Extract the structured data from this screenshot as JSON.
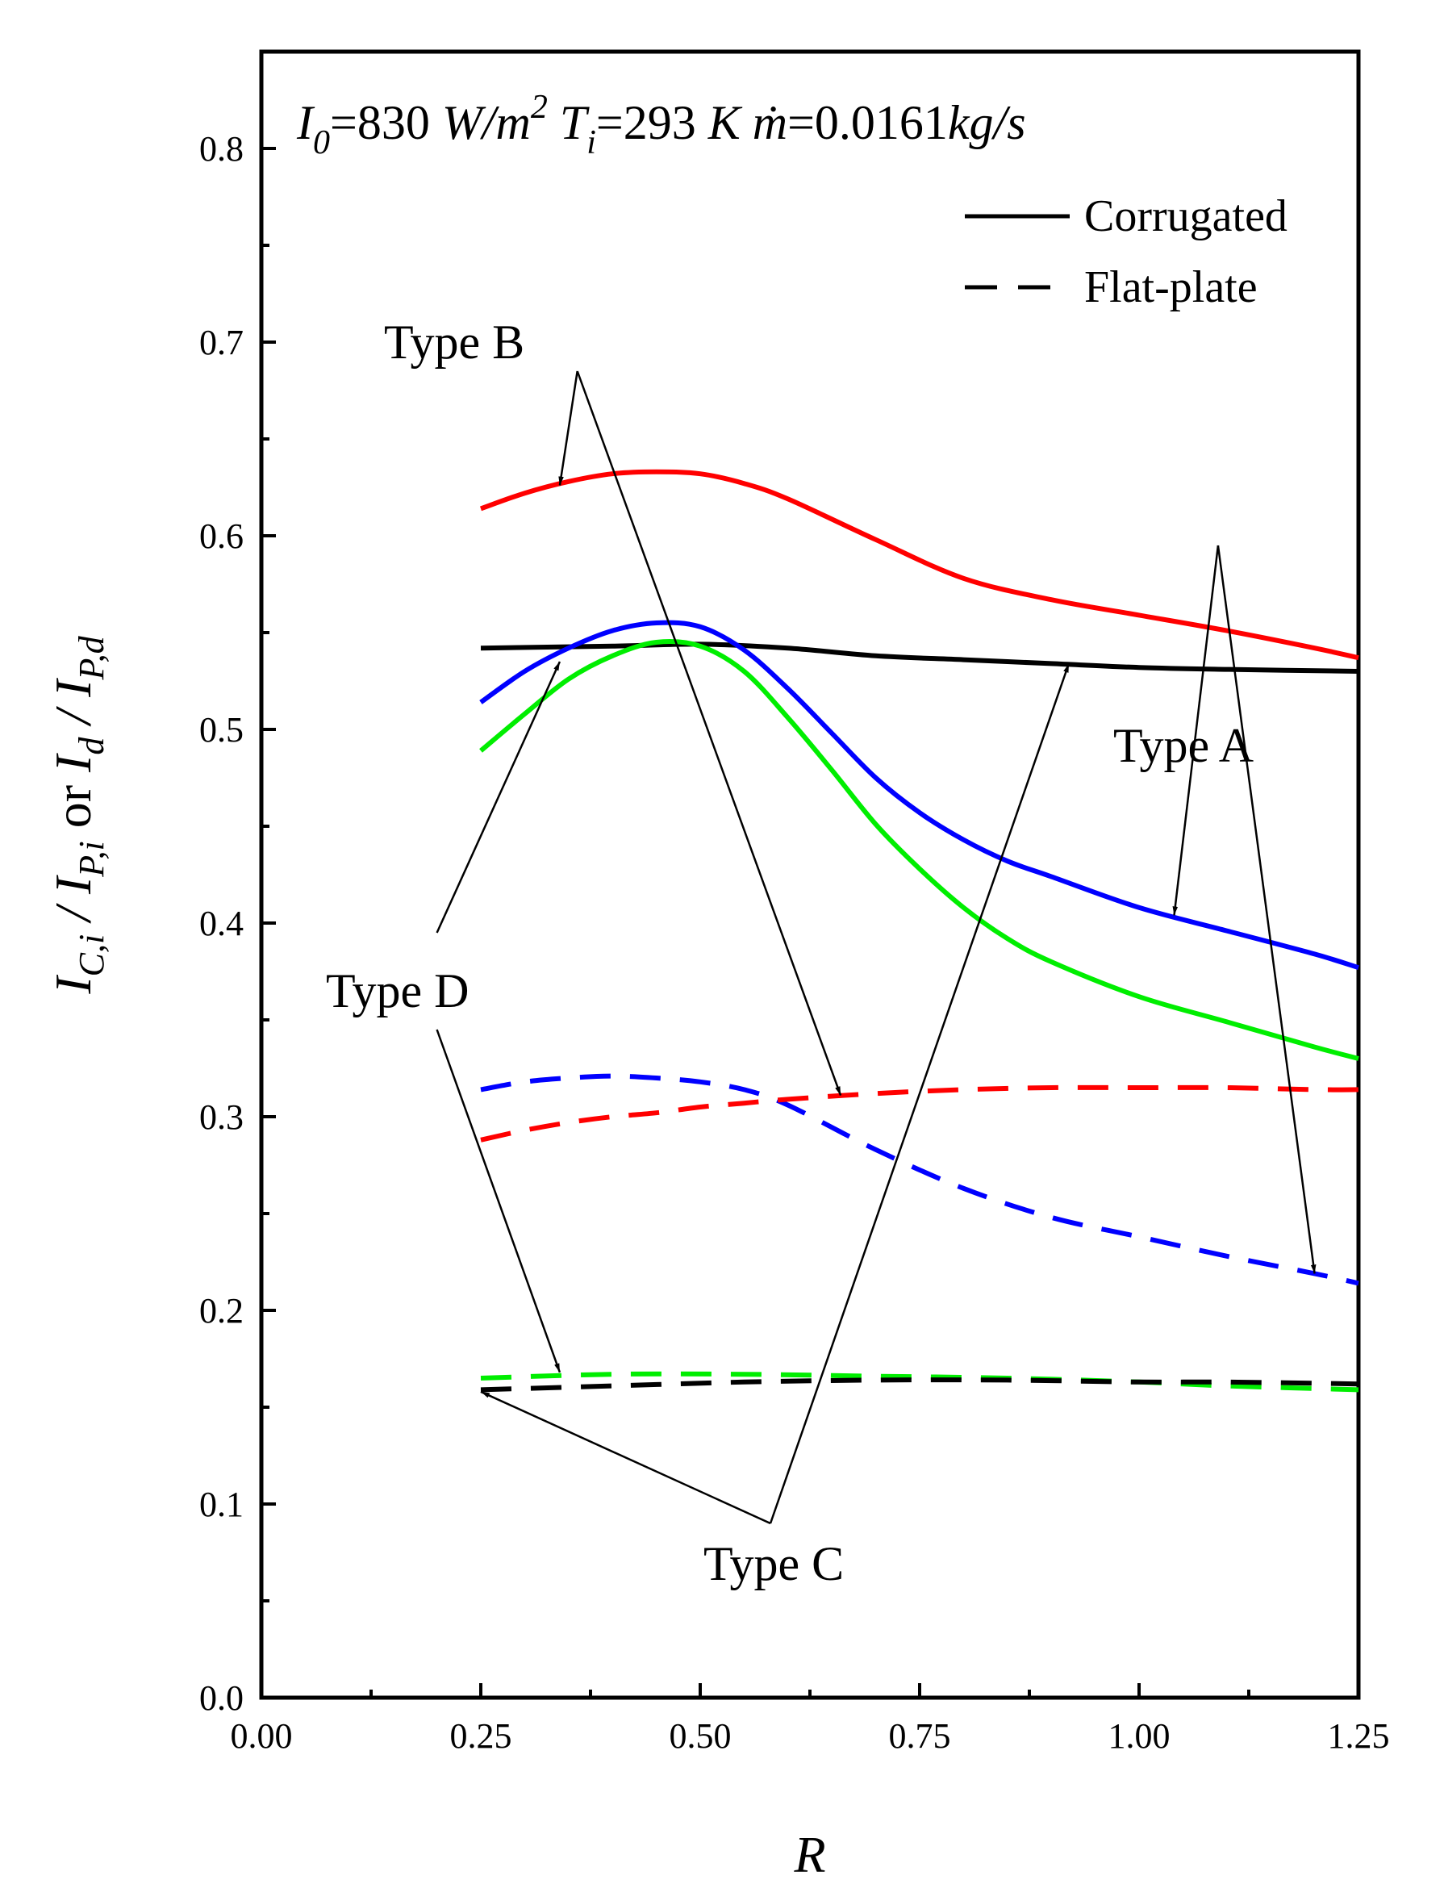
{
  "chart_data": {
    "type": "line",
    "title": "",
    "conditions": {
      "i0_sym": "I",
      "i0_sub": "0",
      "i0_eq": "=830 ",
      "i0_unit": "W/m",
      "i0_sup": "2",
      "ti_sym": "T",
      "ti_sub": "i",
      "ti_eq": "=293 ",
      "ti_unit": "K",
      "m_sym": "ṁ",
      "m_eq": "=0.0161",
      "m_unit": "kg/s"
    },
    "xlabel": "R",
    "ylabel": {
      "a_sym": "I",
      "a_sub": "C,i",
      "sep1": " / ",
      "b_sym": "I",
      "b_sub": "P,i",
      "or": "  or  ",
      "c_sym": "I",
      "c_sub": "d",
      "sep2": " / ",
      "d_sym": "I",
      "d_sub": "P,d"
    },
    "xlim": [
      0.0,
      1.25
    ],
    "ylim": [
      0.0,
      0.85
    ],
    "xticks": [
      "0.00",
      "0.25",
      "0.50",
      "0.75",
      "1.00",
      "1.25"
    ],
    "yticks": [
      "0.0",
      "0.1",
      "0.2",
      "0.3",
      "0.4",
      "0.5",
      "0.6",
      "0.7",
      "0.8"
    ],
    "legend": {
      "position": "top-right",
      "entries": [
        {
          "label": "Corrugated",
          "style": "solid"
        },
        {
          "label": "Flat-plate",
          "style": "dashed"
        }
      ]
    },
    "series": [
      {
        "name": "Type B Corrugated",
        "color": "#ff0000",
        "style": "solid",
        "x": [
          0.25,
          0.3,
          0.35,
          0.4,
          0.45,
          0.5,
          0.55,
          0.6,
          0.7,
          0.8,
          0.9,
          1.0,
          1.1,
          1.2,
          1.25
        ],
        "y": [
          0.614,
          0.622,
          0.628,
          0.632,
          0.633,
          0.632,
          0.627,
          0.619,
          0.598,
          0.578,
          0.567,
          0.559,
          0.551,
          0.542,
          0.537
        ]
      },
      {
        "name": "Type C Corrugated",
        "color": "#000000",
        "style": "solid",
        "x": [
          0.25,
          0.4,
          0.5,
          0.6,
          0.7,
          0.8,
          0.9,
          1.0,
          1.1,
          1.25
        ],
        "y": [
          0.542,
          0.543,
          0.544,
          0.542,
          0.538,
          0.536,
          0.534,
          0.532,
          0.531,
          0.53
        ]
      },
      {
        "name": "Type A Corrugated",
        "color": "#0000ff",
        "style": "solid",
        "x": [
          0.25,
          0.3,
          0.35,
          0.4,
          0.45,
          0.5,
          0.55,
          0.6,
          0.65,
          0.7,
          0.75,
          0.8,
          0.85,
          0.9,
          1.0,
          1.1,
          1.2,
          1.25
        ],
        "y": [
          0.514,
          0.53,
          0.542,
          0.551,
          0.555,
          0.553,
          0.541,
          0.521,
          0.498,
          0.475,
          0.457,
          0.443,
          0.432,
          0.424,
          0.408,
          0.396,
          0.384,
          0.377
        ]
      },
      {
        "name": "Type D Corrugated",
        "color": "#00ee00",
        "style": "solid",
        "x": [
          0.25,
          0.3,
          0.35,
          0.4,
          0.45,
          0.5,
          0.55,
          0.6,
          0.65,
          0.7,
          0.75,
          0.8,
          0.85,
          0.9,
          1.0,
          1.1,
          1.2,
          1.25
        ],
        "y": [
          0.489,
          0.508,
          0.526,
          0.538,
          0.545,
          0.543,
          0.53,
          0.506,
          0.479,
          0.451,
          0.428,
          0.408,
          0.392,
          0.38,
          0.362,
          0.349,
          0.336,
          0.33
        ]
      },
      {
        "name": "Type A Flat-plate",
        "color": "#0000ff",
        "style": "dashed",
        "x": [
          0.25,
          0.3,
          0.35,
          0.4,
          0.45,
          0.5,
          0.55,
          0.6,
          0.7,
          0.8,
          0.9,
          1.0,
          1.1,
          1.2,
          1.25
        ],
        "y": [
          0.314,
          0.318,
          0.32,
          0.321,
          0.32,
          0.318,
          0.314,
          0.306,
          0.283,
          0.263,
          0.248,
          0.238,
          0.228,
          0.219,
          0.214
        ]
      },
      {
        "name": "Type B Flat-plate",
        "color": "#ff0000",
        "style": "dashed",
        "x": [
          0.25,
          0.3,
          0.35,
          0.4,
          0.45,
          0.5,
          0.55,
          0.6,
          0.7,
          0.8,
          0.9,
          1.0,
          1.1,
          1.2,
          1.25
        ],
        "y": [
          0.288,
          0.293,
          0.297,
          0.3,
          0.302,
          0.305,
          0.307,
          0.309,
          0.312,
          0.314,
          0.315,
          0.315,
          0.315,
          0.314,
          0.314
        ]
      },
      {
        "name": "Type D Flat-plate",
        "color": "#00ee00",
        "style": "dashed",
        "x": [
          0.25,
          0.4,
          0.55,
          0.7,
          0.85,
          1.0,
          1.1,
          1.25
        ],
        "y": [
          0.165,
          0.167,
          0.167,
          0.166,
          0.165,
          0.163,
          0.161,
          0.159
        ]
      },
      {
        "name": "Type C Flat-plate",
        "color": "#000000",
        "style": "dashed",
        "x": [
          0.25,
          0.4,
          0.55,
          0.7,
          0.85,
          1.0,
          1.1,
          1.25
        ],
        "y": [
          0.159,
          0.161,
          0.163,
          0.164,
          0.164,
          0.163,
          0.163,
          0.162
        ]
      }
    ],
    "annotations": [
      {
        "text": "Type B",
        "at": [
          0.4,
          0.7
        ],
        "arrows": [
          {
            "from": [
              0.36,
              0.685
            ],
            "to": [
              0.34,
              0.626
            ]
          },
          {
            "from": [
              0.36,
              0.685
            ],
            "to": [
              0.66,
              0.311
            ]
          }
        ]
      },
      {
        "text": "Type A",
        "at": [
          1.1,
          0.61
        ],
        "arrows": [
          {
            "from": [
              1.09,
              0.595
            ],
            "to": [
              1.04,
              0.404
            ]
          },
          {
            "from": [
              1.09,
              0.595
            ],
            "to": [
              1.2,
              0.219
            ]
          }
        ]
      },
      {
        "text": "Type D",
        "at": [
          0.25,
          0.36
        ],
        "arrows": [
          {
            "from": [
              0.2,
              0.395
            ],
            "to": [
              0.34,
              0.535
            ]
          },
          {
            "from": [
              0.2,
              0.345
            ],
            "to": [
              0.34,
              0.168
            ]
          }
        ]
      },
      {
        "text": "Type C",
        "at": [
          0.63,
          0.07
        ],
        "arrows": [
          {
            "from": [
              0.58,
              0.09
            ],
            "to": [
              0.25,
              0.158
            ]
          },
          {
            "from": [
              0.58,
              0.09
            ],
            "to": [
              0.92,
              0.534
            ]
          }
        ]
      }
    ]
  }
}
